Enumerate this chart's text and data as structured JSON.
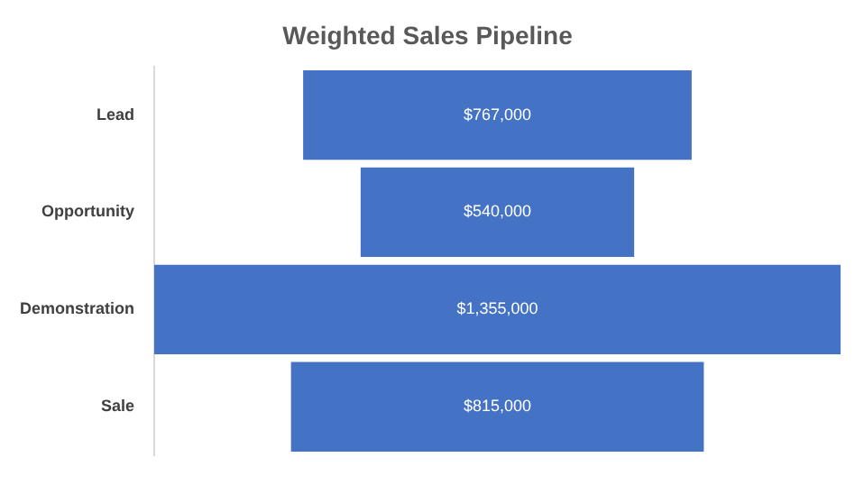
{
  "chart_data": {
    "type": "other",
    "title": "Weighted Sales Pipeline",
    "categories": [
      "Lead",
      "Opportunity",
      "Demonstration",
      "Sale"
    ],
    "values": [
      767000,
      540000,
      1355000,
      815000
    ],
    "value_labels": [
      "$767,000",
      "$540,000",
      "$1,355,000",
      "$815,000"
    ],
    "color": "#4472c4"
  }
}
